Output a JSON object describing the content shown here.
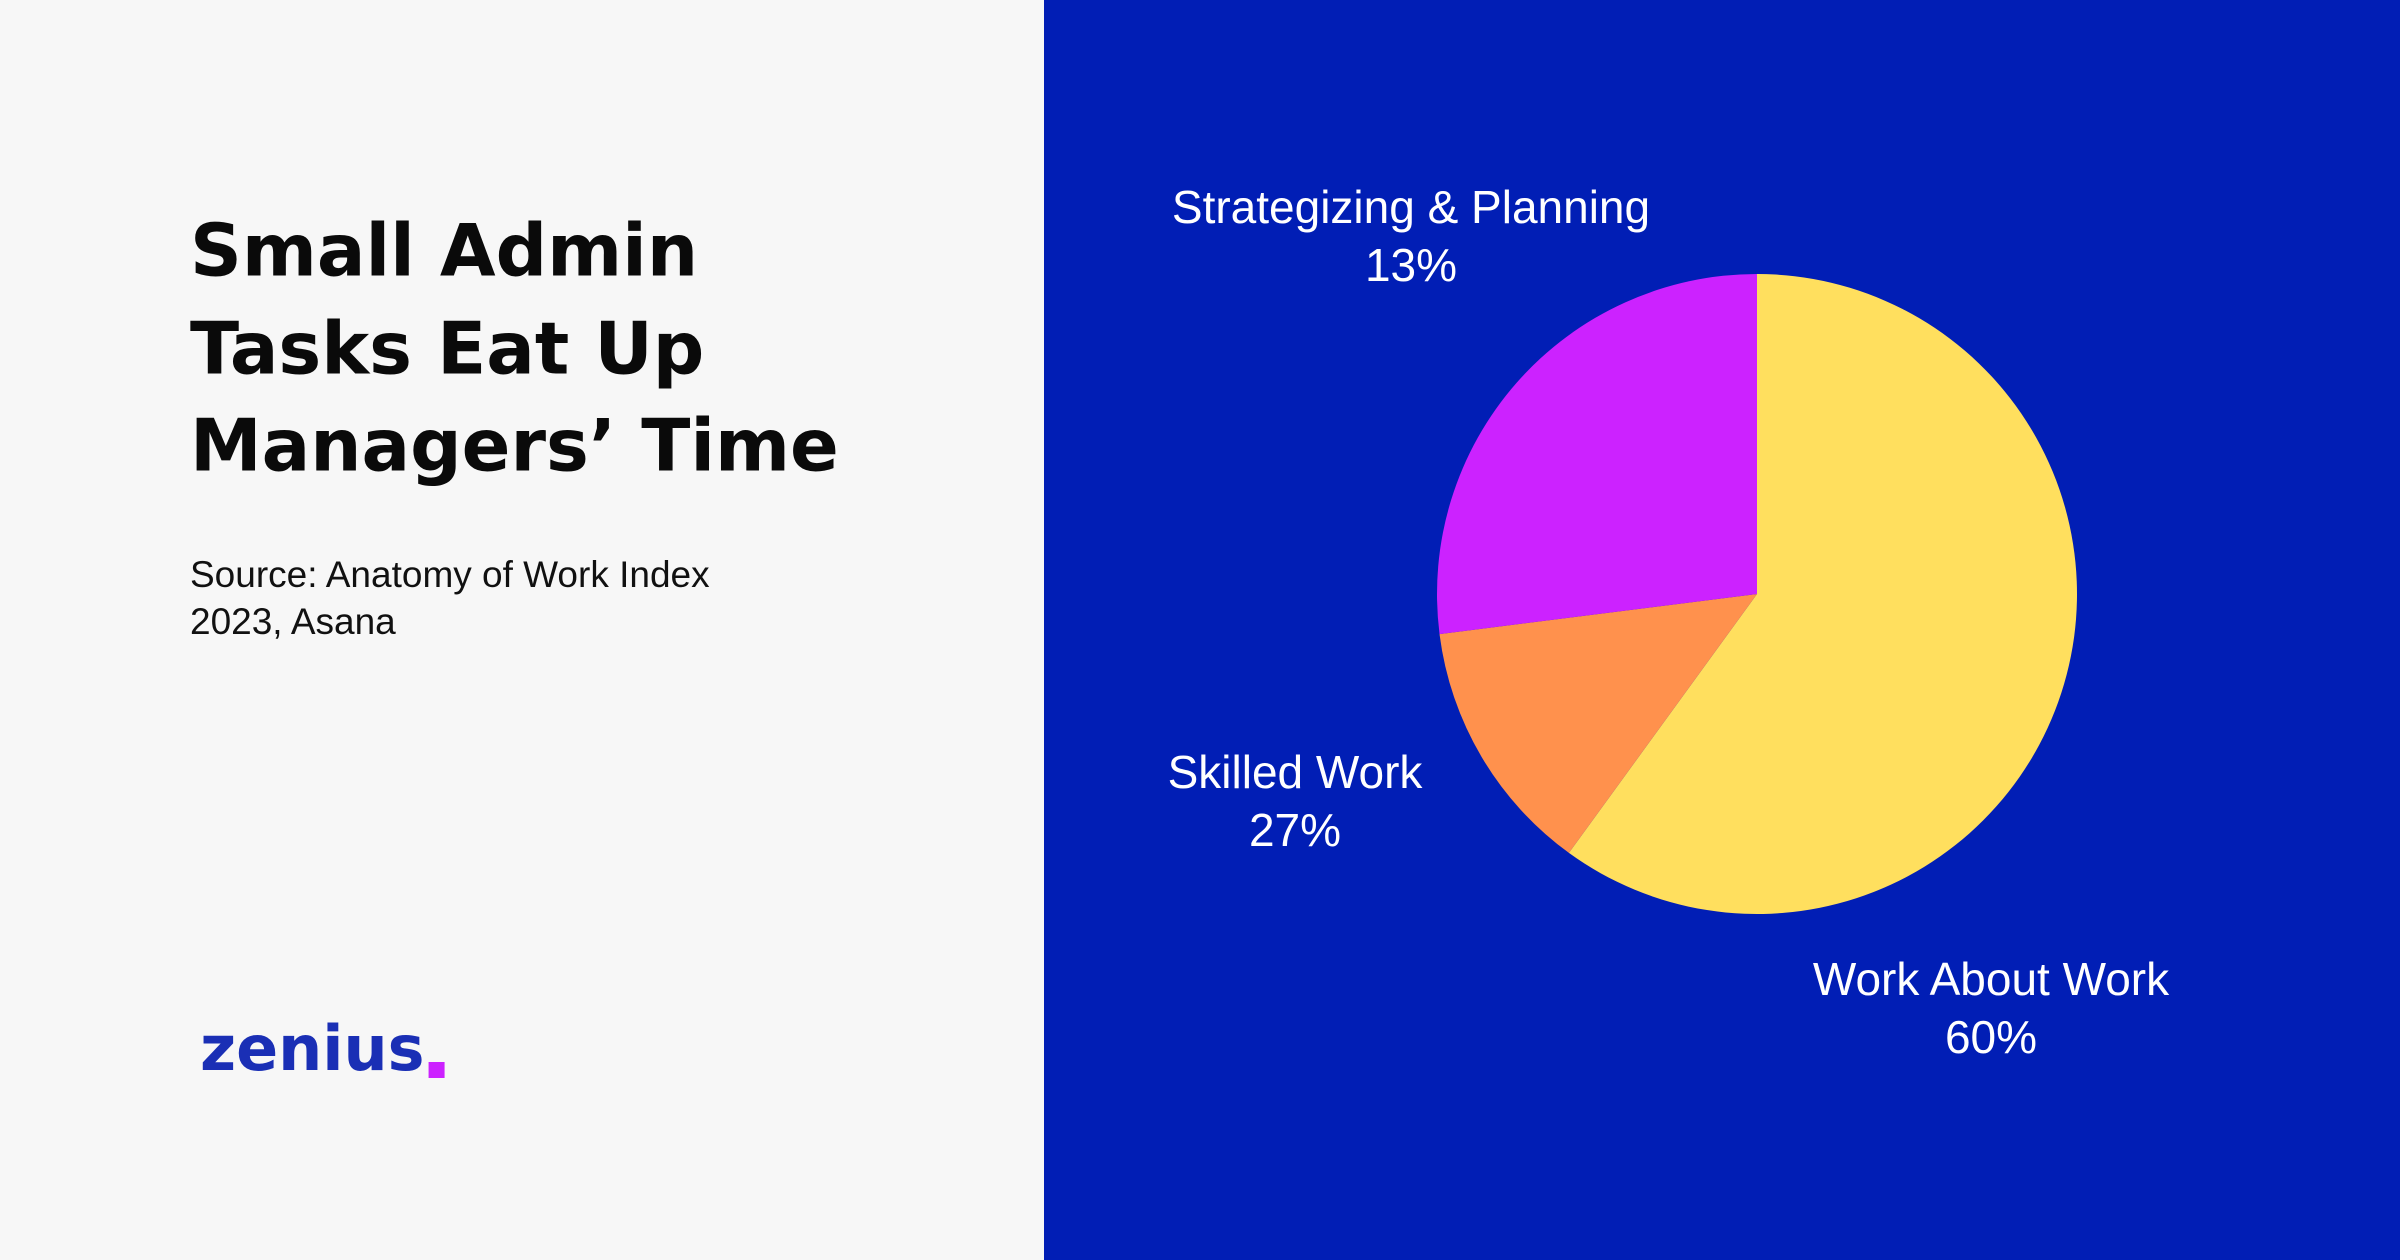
{
  "chart_data": {
    "type": "pie",
    "title": [
      "Small Admin",
      "Tasks Eat Up",
      "Managers’ Time"
    ],
    "source": [
      "Source: Anatomy of Work Index",
      "2023, Asana"
    ],
    "categories": [
      "Work About Work",
      "Strategizing & Planning",
      "Skilled Work"
    ],
    "values": [
      60,
      13,
      27
    ],
    "value_labels": [
      "60%",
      "13%",
      "27%"
    ],
    "colors": [
      "#ffdf5e",
      "#ff914d",
      "#cc22ff"
    ]
  },
  "brand": "zenius"
}
